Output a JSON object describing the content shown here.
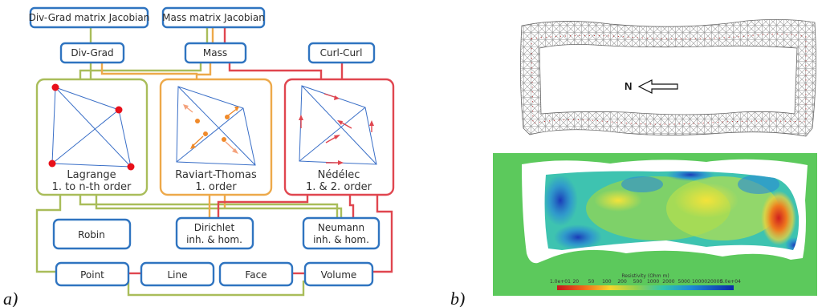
{
  "panel_labels": {
    "a": "a)",
    "b": "b)"
  },
  "diagram": {
    "jacobians": {
      "divgrad": "Div-Grad matrix Jacobian",
      "mass": "Mass matrix Jacobian"
    },
    "operators": {
      "divgrad": "Div-Grad",
      "mass": "Mass",
      "curlcurl": "Curl-Curl"
    },
    "elements": {
      "lagrange": {
        "name": "Lagrange",
        "order": "1. to n-th order",
        "color": "#a9bd5a"
      },
      "raviart": {
        "name": "Raviart-Thomas",
        "order": "1. order",
        "color": "#eda94a"
      },
      "nedelec": {
        "name": "Nédélec",
        "order": "1. & 2. order",
        "color": "#e0464f"
      }
    },
    "boundary": {
      "robin": "Robin",
      "dirichlet": [
        "Dirichlet",
        "inh. & hom."
      ],
      "neumann": [
        "Neumann",
        "inh. & hom."
      ]
    },
    "geometry": {
      "point": "Point",
      "line": "Line",
      "face": "Face",
      "volume": "Volume"
    },
    "box_color": "#2f74c0"
  },
  "mesh_panel": {
    "north_label": "N"
  },
  "resistivity_panel": {
    "colorbar_title": "Resistivity (Ohm m)",
    "colorbar_ticks": [
      "1.0e+01",
      "20",
      "50",
      "100",
      "200",
      "500",
      "1000",
      "2000",
      "5000",
      "10000",
      "20000",
      "5.0e+04"
    ],
    "background_color": "#5cc95c"
  }
}
